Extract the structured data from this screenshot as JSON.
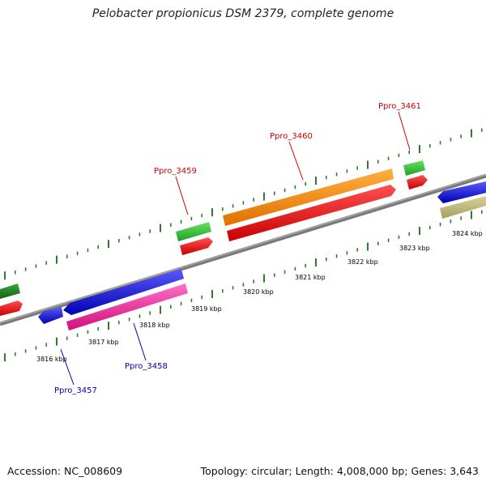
{
  "title": "Pelobacter propionicus DSM 2379, complete genome",
  "footer": {
    "accession": "Accession: NC_008609",
    "summary": "Topology: circular; Length: 4,008,000 bp; Genes: 3,643"
  },
  "colors": {
    "background": "#ffffff",
    "backbone": "#888888",
    "tick": "#2e7d2e",
    "forward_label": "#cc0000",
    "reverse_label": "#0000aa"
  },
  "ruler": {
    "unit": "kbp",
    "labels": [
      "3816 kbp",
      "3817 kbp",
      "3818 kbp",
      "3819 kbp",
      "3820 kbp",
      "3821 kbp",
      "3822 kbp",
      "3823 kbp",
      "3824 kbp"
    ]
  },
  "genes": [
    {
      "label": "Ppro_3457",
      "strand": "reverse",
      "feature_color": "#1a1acc",
      "label_color": "#0000aa"
    },
    {
      "label": "Ppro_3458",
      "strand": "reverse",
      "feature_color": "#1a1acc",
      "label_color": "#0000aa"
    },
    {
      "label": "Ppro_3459",
      "strand": "forward",
      "feature_color": "#33bb33",
      "label_color": "#cc0000"
    },
    {
      "label": "Ppro_3460",
      "strand": "forward",
      "feature_color": "#ff8c00",
      "label_color": "#cc0000"
    },
    {
      "label": "Ppro_3461",
      "strand": "forward",
      "feature_color": "#33bb33",
      "label_color": "#cc0000"
    }
  ]
}
